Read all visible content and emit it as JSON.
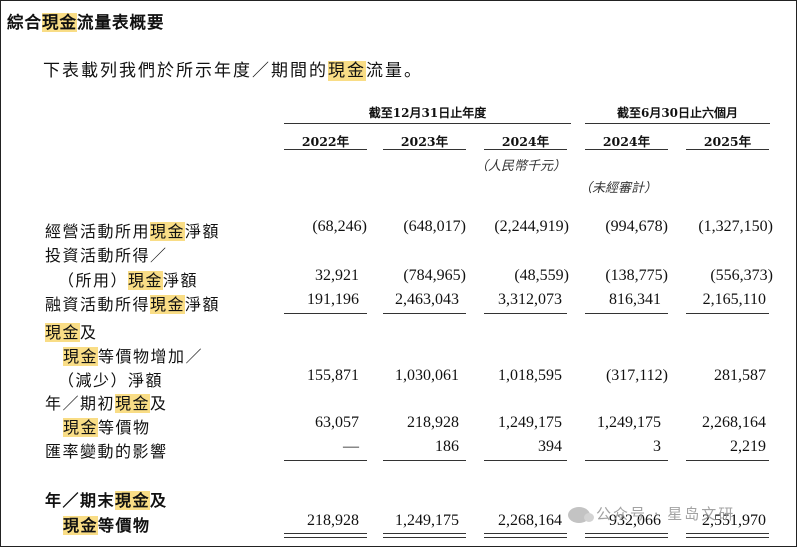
{
  "heading": {
    "pre": "綜合",
    "hl": "現金",
    "post": "流量表概要"
  },
  "intro": {
    "pre": "下表載列我們於所示年度／期間的",
    "hl": "現金",
    "post": "流量。"
  },
  "groups": {
    "annual": "截至12月31日止年度",
    "interim": "截至6月30日止六個月"
  },
  "years": [
    "2022年",
    "2023年",
    "2024年",
    "2024年",
    "2025年"
  ],
  "notes": {
    "currency": "（人民幣千元）",
    "unaudited": "（未經審計）"
  },
  "rows": {
    "operating": {
      "pre": "經營活動所用",
      "hl": "現金",
      "post": "淨額",
      "values": [
        "(68,246)",
        "(648,017)",
        "(2,244,919)",
        "(994,678)",
        "(1,327,150)"
      ]
    },
    "investing": {
      "line1": "投資活動所得／",
      "pre2": "（所用）",
      "hl": "現金",
      "post2": "淨額",
      "values": [
        "32,921",
        "(784,965)",
        "(48,559)",
        "(138,775)",
        "(556,373)"
      ]
    },
    "financing": {
      "pre": "融資活動所得",
      "hl": "現金",
      "post": "淨額",
      "values": [
        "191,196",
        "2,463,043",
        "3,312,073",
        "816,341",
        "2,165,110"
      ]
    },
    "net_change": {
      "hl1": "現金",
      "post1": "及",
      "hl2": "現金",
      "post2": "等價物增加／",
      "line3": "（減少）淨額",
      "values": [
        "155,871",
        "1,030,061",
        "1,018,595",
        "(317,112)",
        "281,587"
      ]
    },
    "beginning": {
      "pre1": "年／期初",
      "hl1": "現金",
      "post1": "及",
      "hl2": "現金",
      "post2": "等價物",
      "values": [
        "63,057",
        "218,928",
        "1,249,175",
        "1,249,175",
        "2,268,164"
      ]
    },
    "fx": {
      "label": "匯率變動的影響",
      "values": [
        "—",
        "186",
        "394",
        "3",
        "2,219"
      ]
    },
    "ending": {
      "pre1": "年／期末",
      "hl1": "現金",
      "post1": "及",
      "hl2": "現金",
      "post2": "等價物",
      "values": [
        "218,928",
        "1,249,175",
        "2,268,164",
        "932,066",
        "2,551,970"
      ]
    }
  },
  "watermark": "公众号 · 星岛文研",
  "colors": {
    "highlight": "#f9dd86",
    "text": "#111111",
    "rule": "#333333"
  }
}
